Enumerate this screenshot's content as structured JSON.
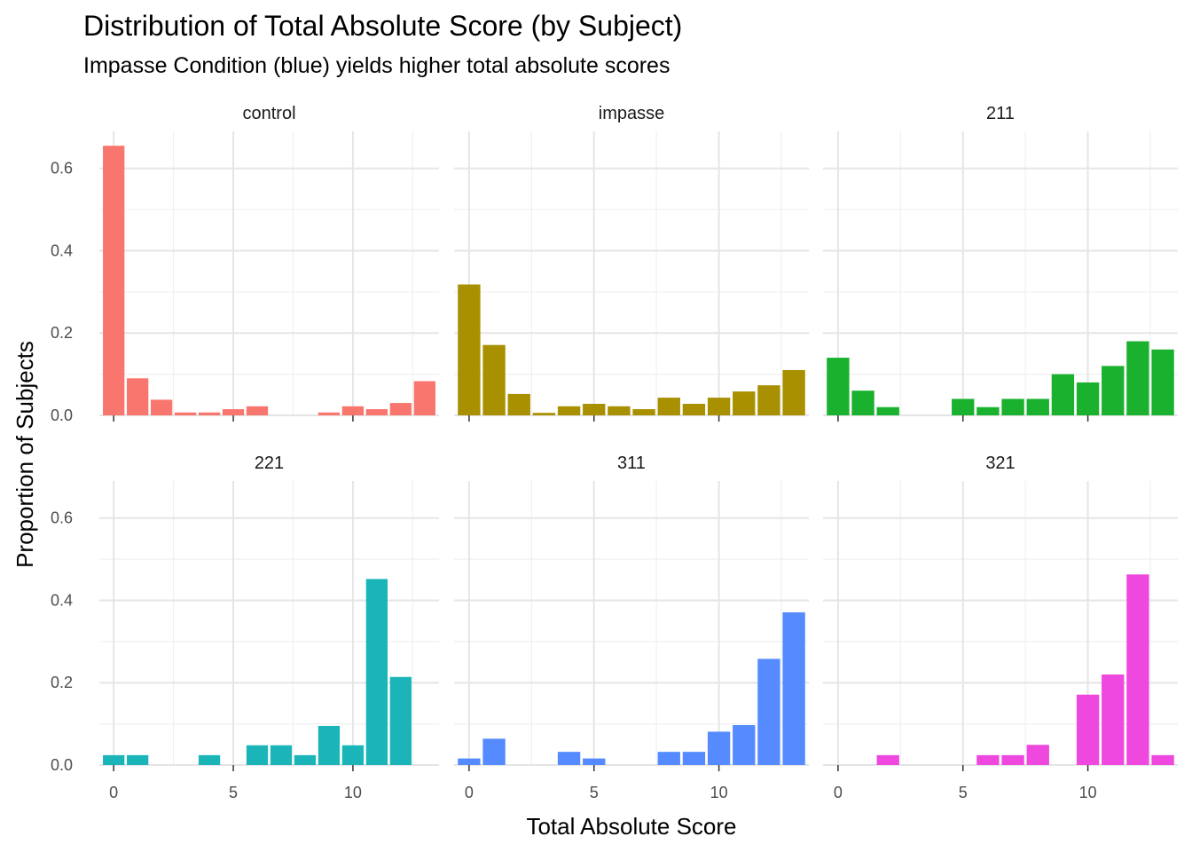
{
  "chart_data": {
    "type": "bar",
    "title": "Distribution of Total Absolute Score (by Subject)",
    "subtitle": "Impasse Condition (blue) yields higher total absolute scores",
    "xlabel": "Total Absolute Score",
    "ylabel": "Proportion of Subjects",
    "xlim": [
      -0.6,
      13.6
    ],
    "ylim": [
      0,
      0.69
    ],
    "x_ticks": [
      0,
      5,
      10
    ],
    "x_tick_labels": [
      "0",
      "5",
      "10"
    ],
    "y_ticks": [
      0,
      0.2,
      0.4,
      0.6
    ],
    "y_tick_labels": [
      "0.0",
      "0.2",
      "0.4",
      "0.6"
    ],
    "x_minor": [
      2.5,
      7.5,
      12.5
    ],
    "y_minor": [
      0.1,
      0.3,
      0.5
    ],
    "grid": true,
    "legend": "none",
    "layout": {
      "rows": 2,
      "cols": 3
    },
    "panels": [
      {
        "name": "control",
        "color": "#F8766D",
        "x": [
          0,
          1,
          2,
          3,
          4,
          5,
          6,
          7,
          8,
          9,
          10,
          11,
          12,
          13
        ],
        "values": [
          0.655,
          0.09,
          0.038,
          0.007,
          0.007,
          0.015,
          0.022,
          0,
          0,
          0.007,
          0.022,
          0.015,
          0.03,
          0.083
        ]
      },
      {
        "name": "impasse",
        "color": "#A89000",
        "x": [
          0,
          1,
          2,
          3,
          4,
          5,
          6,
          7,
          8,
          9,
          10,
          11,
          12,
          13
        ],
        "values": [
          0.318,
          0.171,
          0.052,
          0.006,
          0.022,
          0.028,
          0.022,
          0.015,
          0.043,
          0.028,
          0.043,
          0.058,
          0.073,
          0.11
        ]
      },
      {
        "name": "211",
        "color": "#1AB12F",
        "x": [
          0,
          1,
          2,
          3,
          4,
          5,
          6,
          7,
          8,
          9,
          10,
          11,
          12,
          13
        ],
        "values": [
          0.14,
          0.06,
          0.02,
          0,
          0,
          0.04,
          0.02,
          0.04,
          0.04,
          0.1,
          0.08,
          0.12,
          0.18,
          0.16
        ]
      },
      {
        "name": "221",
        "color": "#1BB5B9",
        "x": [
          0,
          1,
          2,
          3,
          4,
          5,
          6,
          7,
          8,
          9,
          10,
          11,
          12,
          13
        ],
        "values": [
          0.024,
          0.024,
          0,
          0,
          0.024,
          0,
          0.048,
          0.048,
          0.024,
          0.095,
          0.048,
          0.452,
          0.214,
          0
        ]
      },
      {
        "name": "311",
        "color": "#558BFF",
        "x": [
          0,
          1,
          2,
          3,
          4,
          5,
          6,
          7,
          8,
          9,
          10,
          11,
          12,
          13
        ],
        "values": [
          0.016,
          0.064,
          0,
          0,
          0.032,
          0.016,
          0,
          0,
          0.032,
          0.032,
          0.081,
          0.097,
          0.258,
          0.371
        ]
      },
      {
        "name": "321",
        "color": "#EE48DF",
        "x": [
          0,
          1,
          2,
          3,
          4,
          5,
          6,
          7,
          8,
          9,
          10,
          11,
          12,
          13
        ],
        "values": [
          0,
          0,
          0.024,
          0,
          0,
          0,
          0.024,
          0.024,
          0.049,
          0,
          0.171,
          0.22,
          0.463,
          0.024
        ]
      }
    ]
  }
}
